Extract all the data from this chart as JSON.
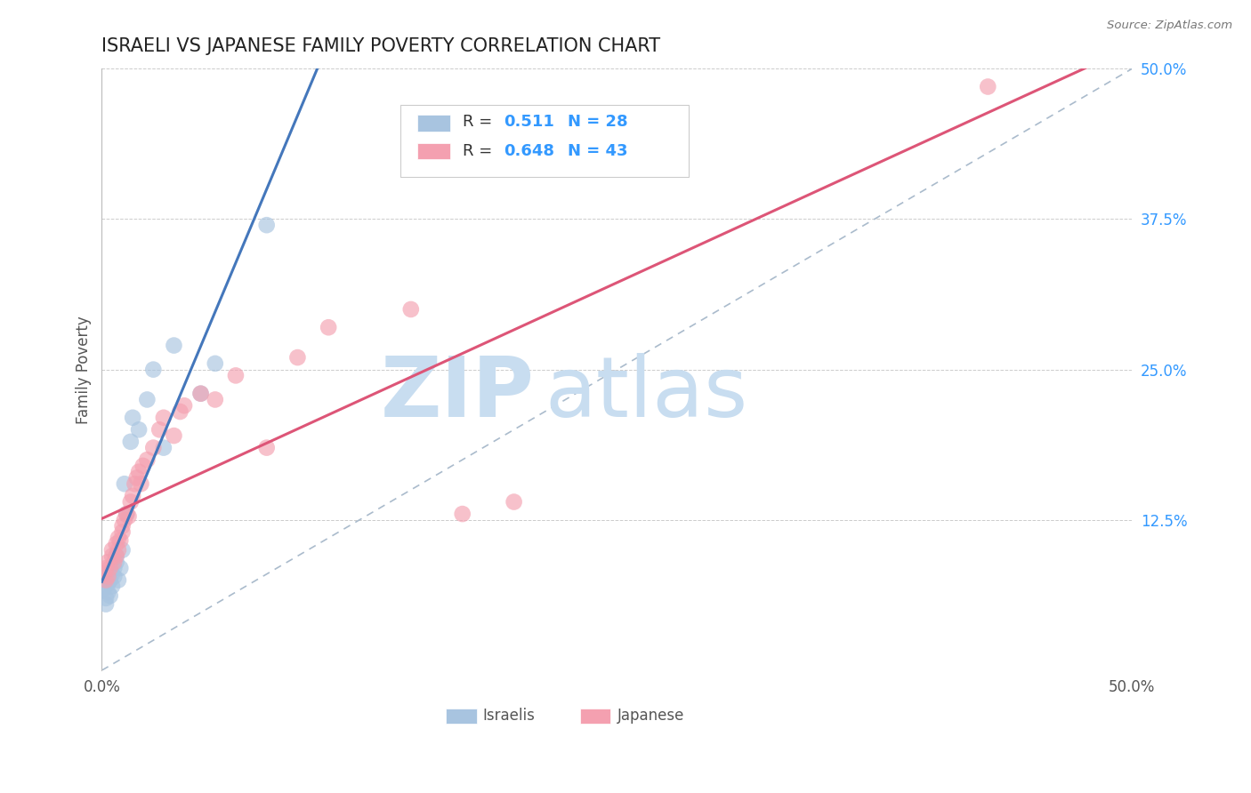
{
  "title": "ISRAELI VS JAPANESE FAMILY POVERTY CORRELATION CHART",
  "source": "Source: ZipAtlas.com",
  "ylabel": "Family Poverty",
  "xlim": [
    0.0,
    0.5
  ],
  "ylim": [
    0.0,
    0.5
  ],
  "ytick_labels_right": [
    "12.5%",
    "25.0%",
    "37.5%",
    "50.0%"
  ],
  "yticks_right": [
    0.125,
    0.25,
    0.375,
    0.5
  ],
  "israeli_color": "#a8c4e0",
  "japanese_color": "#f4a0b0",
  "israeli_line_color": "#4477bb",
  "japanese_line_color": "#dd5577",
  "diagonal_color": "#aabbcc",
  "israeli_R": 0.511,
  "israeli_N": 28,
  "japanese_R": 0.648,
  "japanese_N": 43,
  "israeli_x": [
    0.001,
    0.002,
    0.002,
    0.003,
    0.003,
    0.004,
    0.004,
    0.005,
    0.005,
    0.006,
    0.006,
    0.007,
    0.007,
    0.008,
    0.009,
    0.01,
    0.011,
    0.012,
    0.014,
    0.015,
    0.018,
    0.022,
    0.025,
    0.03,
    0.035,
    0.048,
    0.055,
    0.08
  ],
  "israeli_y": [
    0.068,
    0.055,
    0.06,
    0.072,
    0.065,
    0.075,
    0.062,
    0.08,
    0.07,
    0.078,
    0.085,
    0.09,
    0.095,
    0.075,
    0.085,
    0.1,
    0.155,
    0.13,
    0.19,
    0.21,
    0.2,
    0.225,
    0.25,
    0.185,
    0.27,
    0.23,
    0.255,
    0.37
  ],
  "japanese_x": [
    0.001,
    0.002,
    0.002,
    0.003,
    0.003,
    0.004,
    0.005,
    0.005,
    0.006,
    0.007,
    0.007,
    0.008,
    0.008,
    0.009,
    0.01,
    0.01,
    0.011,
    0.012,
    0.013,
    0.014,
    0.015,
    0.016,
    0.017,
    0.018,
    0.019,
    0.02,
    0.022,
    0.025,
    0.028,
    0.03,
    0.035,
    0.038,
    0.04,
    0.048,
    0.055,
    0.065,
    0.08,
    0.095,
    0.11,
    0.15,
    0.175,
    0.2,
    0.43
  ],
  "japanese_y": [
    0.08,
    0.075,
    0.085,
    0.09,
    0.078,
    0.085,
    0.095,
    0.1,
    0.09,
    0.095,
    0.105,
    0.1,
    0.11,
    0.108,
    0.115,
    0.12,
    0.125,
    0.13,
    0.128,
    0.14,
    0.145,
    0.155,
    0.16,
    0.165,
    0.155,
    0.17,
    0.175,
    0.185,
    0.2,
    0.21,
    0.195,
    0.215,
    0.22,
    0.23,
    0.225,
    0.245,
    0.185,
    0.26,
    0.285,
    0.3,
    0.13,
    0.14,
    0.485
  ],
  "watermark_zip": "ZIP",
  "watermark_atlas": "atlas",
  "watermark_color": "#c8ddf0",
  "background_color": "#ffffff",
  "grid_color": "#cccccc",
  "title_color": "#222222",
  "axis_label_color": "#555555",
  "legend_R_color": "#3399ff",
  "legend_N_color": "#3399ff"
}
